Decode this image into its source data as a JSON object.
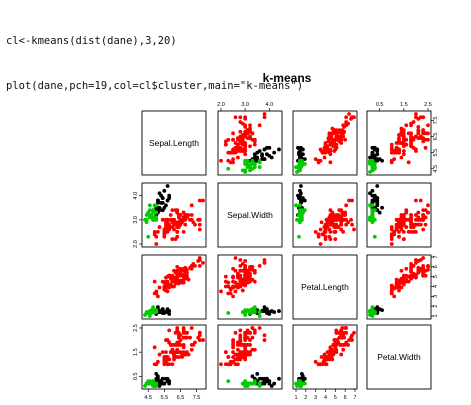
{
  "code_lines": [
    "cl<-kmeans(dist(dane),3,20)",
    "plot(dane,pch=19,col=cl$cluster,main=\"k-means\")"
  ],
  "colors": {
    "cluster1": "#000000",
    "cluster2": "#ff0000",
    "cluster3": "#00cc00"
  },
  "chart_data": {
    "type": "scatter",
    "title": "k-means",
    "variables": [
      "Sepal.Length",
      "Sepal.Width",
      "Petal.Length",
      "Petal.Width"
    ],
    "ranges": {
      "Sepal.Length": [
        4.3,
        7.9
      ],
      "Sepal.Width": [
        2.0,
        4.4
      ],
      "Petal.Length": [
        1.0,
        6.9
      ],
      "Petal.Width": [
        0.1,
        2.5
      ]
    },
    "ticks": {
      "Sepal.Length": [
        "4.5",
        "5.5",
        "6.5",
        "7.5"
      ],
      "Sepal.Width": [
        "2.0",
        "3.0",
        "4.0"
      ],
      "Petal.Length": [
        "1",
        "2",
        "3",
        "4",
        "5",
        "6",
        "7"
      ],
      "Petal.Width": [
        "0.5",
        "1.5",
        "2.5"
      ]
    },
    "bottom_tick_labels": {
      "Sepal.Length": [
        "4.5",
        "5.5",
        "6.5",
        "7.5"
      ],
      "Petal.Length": [
        "1",
        "2",
        "3",
        "4",
        "5",
        "6",
        "7"
      ]
    },
    "top_tick_labels": {
      "Sepal.Width": [
        "2.0",
        "3.0",
        "4.0"
      ],
      "Petal.Width": [
        "0.5",
        "1.5",
        "2.5"
      ]
    },
    "left_tick_labels": {
      "Sepal.Width": [
        "2.0",
        "3.0",
        "4.0"
      ],
      "Petal.Width": [
        "0.5",
        "1.5",
        "2.5"
      ]
    },
    "right_tick_labels": {
      "Sepal.Length": [
        "4.5",
        "5.5",
        "6.5",
        "7.5"
      ],
      "Petal.Length": [
        "1",
        "2",
        "3",
        "4",
        "5",
        "6",
        "7"
      ]
    },
    "series": [
      {
        "cluster": 1,
        "color": "#000000",
        "points": [
          [
            5.1,
            3.5,
            1.4,
            0.2
          ],
          [
            5.4,
            3.9,
            1.7,
            0.4
          ],
          [
            5.0,
            3.4,
            1.5,
            0.2
          ],
          [
            5.4,
            3.7,
            1.5,
            0.2
          ],
          [
            5.8,
            4.0,
            1.2,
            0.2
          ],
          [
            5.7,
            4.4,
            1.5,
            0.4
          ],
          [
            5.4,
            3.9,
            1.3,
            0.4
          ],
          [
            5.1,
            3.5,
            1.4,
            0.3
          ],
          [
            5.7,
            3.8,
            1.7,
            0.3
          ],
          [
            5.1,
            3.8,
            1.5,
            0.3
          ],
          [
            5.4,
            3.4,
            1.7,
            0.2
          ],
          [
            5.1,
            3.7,
            1.5,
            0.4
          ],
          [
            5.1,
            3.3,
            1.7,
            0.5
          ],
          [
            5.0,
            3.4,
            1.6,
            0.4
          ],
          [
            5.2,
            3.5,
            1.5,
            0.2
          ],
          [
            5.2,
            3.4,
            1.4,
            0.2
          ],
          [
            5.4,
            3.4,
            1.5,
            0.4
          ],
          [
            5.2,
            4.1,
            1.5,
            0.1
          ],
          [
            5.5,
            4.2,
            1.4,
            0.2
          ],
          [
            5.0,
            3.2,
            1.2,
            0.2
          ],
          [
            5.5,
            3.5,
            1.3,
            0.2
          ],
          [
            5.1,
            3.4,
            1.5,
            0.2
          ],
          [
            5.0,
            3.5,
            1.3,
            0.3
          ],
          [
            5.0,
            3.5,
            1.6,
            0.6
          ],
          [
            5.1,
            3.8,
            1.9,
            0.4
          ],
          [
            5.1,
            3.8,
            1.6,
            0.2
          ],
          [
            5.3,
            3.7,
            1.5,
            0.2
          ],
          [
            5.0,
            3.3,
            1.4,
            0.2
          ],
          [
            5.7,
            3.8,
            1.6,
            0.3
          ],
          [
            5.6,
            3.6,
            1.4,
            0.4
          ],
          [
            5.8,
            3.9,
            1.5,
            0.3
          ],
          [
            5.3,
            4.0,
            1.4,
            0.3
          ]
        ]
      },
      {
        "cluster": 2,
        "color": "#ff0000",
        "points": [
          [
            7.0,
            3.2,
            4.7,
            1.4
          ],
          [
            6.4,
            3.2,
            4.5,
            1.5
          ],
          [
            6.9,
            3.1,
            4.9,
            1.5
          ],
          [
            5.5,
            2.3,
            4.0,
            1.3
          ],
          [
            6.5,
            2.8,
            4.6,
            1.5
          ],
          [
            5.7,
            2.8,
            4.5,
            1.3
          ],
          [
            6.3,
            3.3,
            4.7,
            1.6
          ],
          [
            4.9,
            2.4,
            3.3,
            1.0
          ],
          [
            6.6,
            2.9,
            4.6,
            1.3
          ],
          [
            5.2,
            2.7,
            3.9,
            1.4
          ],
          [
            5.0,
            2.0,
            3.5,
            1.0
          ],
          [
            5.9,
            3.0,
            4.2,
            1.5
          ],
          [
            6.0,
            2.2,
            4.0,
            1.0
          ],
          [
            6.1,
            2.9,
            4.7,
            1.4
          ],
          [
            5.6,
            2.9,
            3.6,
            1.3
          ],
          [
            6.7,
            3.1,
            4.4,
            1.4
          ],
          [
            5.6,
            3.0,
            4.5,
            1.5
          ],
          [
            5.8,
            2.7,
            4.1,
            1.0
          ],
          [
            6.2,
            2.2,
            4.5,
            1.5
          ],
          [
            5.6,
            2.5,
            3.9,
            1.1
          ],
          [
            5.9,
            3.2,
            4.8,
            1.8
          ],
          [
            6.1,
            2.8,
            4.0,
            1.3
          ],
          [
            6.3,
            2.5,
            4.9,
            1.5
          ],
          [
            6.1,
            2.8,
            4.7,
            1.2
          ],
          [
            6.4,
            2.9,
            4.3,
            1.3
          ],
          [
            6.6,
            3.0,
            4.4,
            1.4
          ],
          [
            6.8,
            2.8,
            4.8,
            1.4
          ],
          [
            6.7,
            3.0,
            5.0,
            1.7
          ],
          [
            6.0,
            2.9,
            4.5,
            1.5
          ],
          [
            5.7,
            2.6,
            3.5,
            1.0
          ],
          [
            5.5,
            2.4,
            3.8,
            1.1
          ],
          [
            5.5,
            2.4,
            3.7,
            1.0
          ],
          [
            5.8,
            2.7,
            3.9,
            1.2
          ],
          [
            6.0,
            2.7,
            5.1,
            1.6
          ],
          [
            5.4,
            3.0,
            4.5,
            1.5
          ],
          [
            6.0,
            3.4,
            4.5,
            1.6
          ],
          [
            6.7,
            3.1,
            4.7,
            1.5
          ],
          [
            6.3,
            2.3,
            4.4,
            1.3
          ],
          [
            5.6,
            3.0,
            4.1,
            1.3
          ],
          [
            5.5,
            2.5,
            4.0,
            1.3
          ],
          [
            5.5,
            2.6,
            4.4,
            1.2
          ],
          [
            6.1,
            3.0,
            4.6,
            1.4
          ],
          [
            5.8,
            2.6,
            4.0,
            1.2
          ],
          [
            5.0,
            2.3,
            3.3,
            1.0
          ],
          [
            5.6,
            2.7,
            4.2,
            1.3
          ],
          [
            5.7,
            3.0,
            4.2,
            1.2
          ],
          [
            5.7,
            2.9,
            4.2,
            1.3
          ],
          [
            6.2,
            2.9,
            4.3,
            1.3
          ],
          [
            5.1,
            2.5,
            3.0,
            1.1
          ],
          [
            5.7,
            2.8,
            4.1,
            1.3
          ],
          [
            6.3,
            3.3,
            6.0,
            2.5
          ],
          [
            5.8,
            2.7,
            5.1,
            1.9
          ],
          [
            7.1,
            3.0,
            5.9,
            2.1
          ],
          [
            6.3,
            2.9,
            5.6,
            1.8
          ],
          [
            6.5,
            3.0,
            5.8,
            2.2
          ],
          [
            7.6,
            3.0,
            6.6,
            2.1
          ],
          [
            4.9,
            2.5,
            4.5,
            1.7
          ],
          [
            7.3,
            2.9,
            6.3,
            1.8
          ],
          [
            6.7,
            2.5,
            5.8,
            1.8
          ],
          [
            7.2,
            3.6,
            6.1,
            2.5
          ],
          [
            6.5,
            3.2,
            5.1,
            2.0
          ],
          [
            6.4,
            2.7,
            5.3,
            1.9
          ],
          [
            6.8,
            3.0,
            5.5,
            2.1
          ],
          [
            5.7,
            2.5,
            5.0,
            2.0
          ],
          [
            5.8,
            2.8,
            5.1,
            2.4
          ],
          [
            6.4,
            3.2,
            5.3,
            2.3
          ],
          [
            6.5,
            3.0,
            5.5,
            1.8
          ],
          [
            7.7,
            3.8,
            6.7,
            2.2
          ],
          [
            7.7,
            2.6,
            6.9,
            2.3
          ],
          [
            6.0,
            2.2,
            5.0,
            1.5
          ],
          [
            6.9,
            3.2,
            5.7,
            2.3
          ],
          [
            5.6,
            2.8,
            4.9,
            2.0
          ],
          [
            7.7,
            2.8,
            6.7,
            2.0
          ],
          [
            6.3,
            2.7,
            4.9,
            1.8
          ],
          [
            6.7,
            3.3,
            5.7,
            2.1
          ],
          [
            7.2,
            3.2,
            6.0,
            1.8
          ],
          [
            6.2,
            2.8,
            4.8,
            1.8
          ],
          [
            6.1,
            3.0,
            4.9,
            1.8
          ],
          [
            6.4,
            2.8,
            5.6,
            2.1
          ],
          [
            7.2,
            3.0,
            5.8,
            1.6
          ],
          [
            7.4,
            2.8,
            6.1,
            1.9
          ],
          [
            7.9,
            3.8,
            6.4,
            2.0
          ],
          [
            6.4,
            2.8,
            5.6,
            2.2
          ],
          [
            6.3,
            2.8,
            5.1,
            1.5
          ],
          [
            6.1,
            2.6,
            5.6,
            1.4
          ],
          [
            7.7,
            3.0,
            6.1,
            2.3
          ],
          [
            6.3,
            3.4,
            5.6,
            2.4
          ],
          [
            6.4,
            3.1,
            5.5,
            1.8
          ],
          [
            6.0,
            3.0,
            4.8,
            1.8
          ],
          [
            6.9,
            3.1,
            5.4,
            2.1
          ],
          [
            6.7,
            3.1,
            5.6,
            2.4
          ],
          [
            6.9,
            3.1,
            5.1,
            2.3
          ],
          [
            5.8,
            2.7,
            5.1,
            1.9
          ],
          [
            6.8,
            3.2,
            5.9,
            2.3
          ],
          [
            6.7,
            3.3,
            5.7,
            2.5
          ],
          [
            6.7,
            3.0,
            5.2,
            2.3
          ],
          [
            6.3,
            2.5,
            5.0,
            1.9
          ],
          [
            6.5,
            3.0,
            5.2,
            2.0
          ],
          [
            6.2,
            3.4,
            5.4,
            2.3
          ],
          [
            5.9,
            3.0,
            5.1,
            1.8
          ]
        ]
      },
      {
        "cluster": 3,
        "color": "#00cc00",
        "points": [
          [
            4.9,
            3.0,
            1.4,
            0.2
          ],
          [
            4.7,
            3.2,
            1.3,
            0.2
          ],
          [
            4.6,
            3.1,
            1.5,
            0.2
          ],
          [
            4.6,
            3.4,
            1.4,
            0.3
          ],
          [
            4.4,
            2.9,
            1.4,
            0.2
          ],
          [
            4.9,
            3.1,
            1.5,
            0.1
          ],
          [
            4.8,
            3.4,
            1.6,
            0.2
          ],
          [
            4.8,
            3.0,
            1.4,
            0.1
          ],
          [
            4.3,
            3.0,
            1.1,
            0.1
          ],
          [
            4.6,
            3.6,
            1.0,
            0.2
          ],
          [
            4.8,
            3.4,
            1.9,
            0.2
          ],
          [
            5.0,
            3.0,
            1.6,
            0.2
          ],
          [
            4.7,
            3.2,
            1.6,
            0.2
          ],
          [
            4.8,
            3.1,
            1.6,
            0.2
          ],
          [
            4.9,
            3.1,
            1.5,
            0.2
          ],
          [
            4.9,
            3.6,
            1.4,
            0.1
          ],
          [
            4.4,
            3.0,
            1.3,
            0.2
          ],
          [
            4.5,
            2.3,
            1.3,
            0.3
          ],
          [
            4.4,
            3.2,
            1.3,
            0.2
          ],
          [
            4.8,
            3.0,
            1.4,
            0.3
          ],
          [
            4.6,
            3.2,
            1.4,
            0.2
          ],
          [
            5.0,
            3.3,
            1.4,
            0.2
          ],
          [
            4.7,
            3.1,
            1.5,
            0.2
          ],
          [
            4.5,
            3.3,
            1.4,
            0.2
          ],
          [
            5.0,
            3.6,
            1.4,
            0.2
          ],
          [
            4.9,
            3.3,
            1.5,
            0.2
          ],
          [
            4.8,
            3.3,
            1.7,
            0.2
          ],
          [
            5.0,
            3.1,
            1.5,
            0.1
          ]
        ]
      }
    ]
  }
}
